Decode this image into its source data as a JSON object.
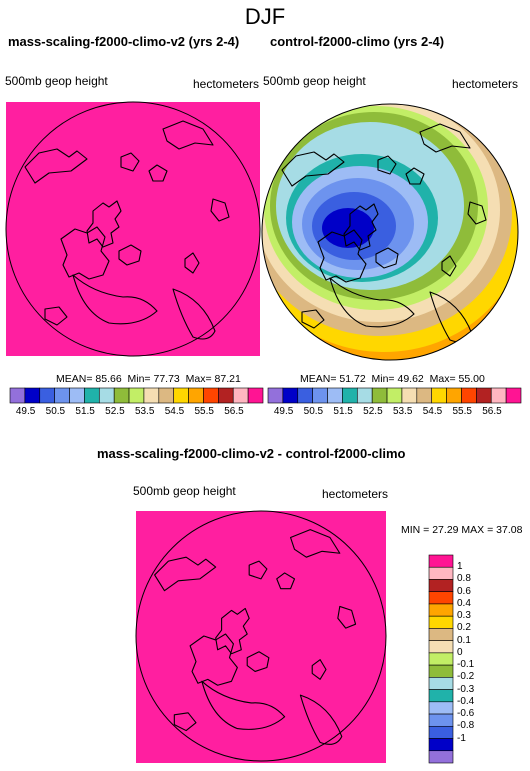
{
  "page_title": "DJF",
  "colors": {
    "magenta": "#ff1fa0",
    "coast": "#000000",
    "palette": [
      "#9370db",
      "#0000c8",
      "#3a5fe0",
      "#6d93ee",
      "#9dbcf5",
      "#20b2aa",
      "#a6dce5",
      "#8fbc3a",
      "#c2ee66",
      "#f5deb3",
      "#dcb882",
      "#ffd700",
      "#ffa500",
      "#ff4500",
      "#b22222",
      "#ffb6c1",
      "#ff1493"
    ]
  },
  "chart_data": [
    {
      "type": "heatmap",
      "title": "mass-scaling-f2000-climo-v2 (yrs 2-4)",
      "left_label": "500mb geop height",
      "right_label": "hectometers",
      "stats": {
        "mean_label": "MEAN=",
        "mean": "85.66",
        "min_label": "Min=",
        "min": "77.73",
        "max_label": "Max=",
        "max": "87.21"
      },
      "colorbar_ticks": [
        "49.5",
        "50.5",
        "51.5",
        "52.5",
        "53.5",
        "54.5",
        "55.5",
        "56.5"
      ],
      "fill": "uniform-max"
    },
    {
      "type": "heatmap",
      "title": "control-f2000-climo (yrs 2-4)",
      "left_label": "500mb geop height",
      "right_label": "hectometers",
      "stats": {
        "mean_label": "MEAN=",
        "mean": "51.72",
        "min_label": "Min=",
        "min": "49.62",
        "max_label": "Max=",
        "max": "55.00"
      },
      "colorbar_ticks": [
        "49.5",
        "50.5",
        "51.5",
        "52.5",
        "53.5",
        "54.5",
        "55.5",
        "56.5"
      ],
      "fill": "polar-low"
    },
    {
      "type": "heatmap",
      "title": "mass-scaling-f2000-climo-v2 - control-f2000-climo",
      "left_label": "500mb geop height",
      "right_label": "hectometers",
      "stats": {
        "min_label": "MIN =",
        "min": "27.29",
        "max_label": "MAX =",
        "max": "37.08"
      },
      "colorbar_ticks": [
        "1",
        "0.8",
        "0.6",
        "0.4",
        "0.3",
        "0.2",
        "0.1",
        "0",
        "-0.1",
        "-0.2",
        "-0.3",
        "-0.4",
        "-0.6",
        "-0.8",
        "-1"
      ],
      "fill": "uniform-max"
    }
  ]
}
